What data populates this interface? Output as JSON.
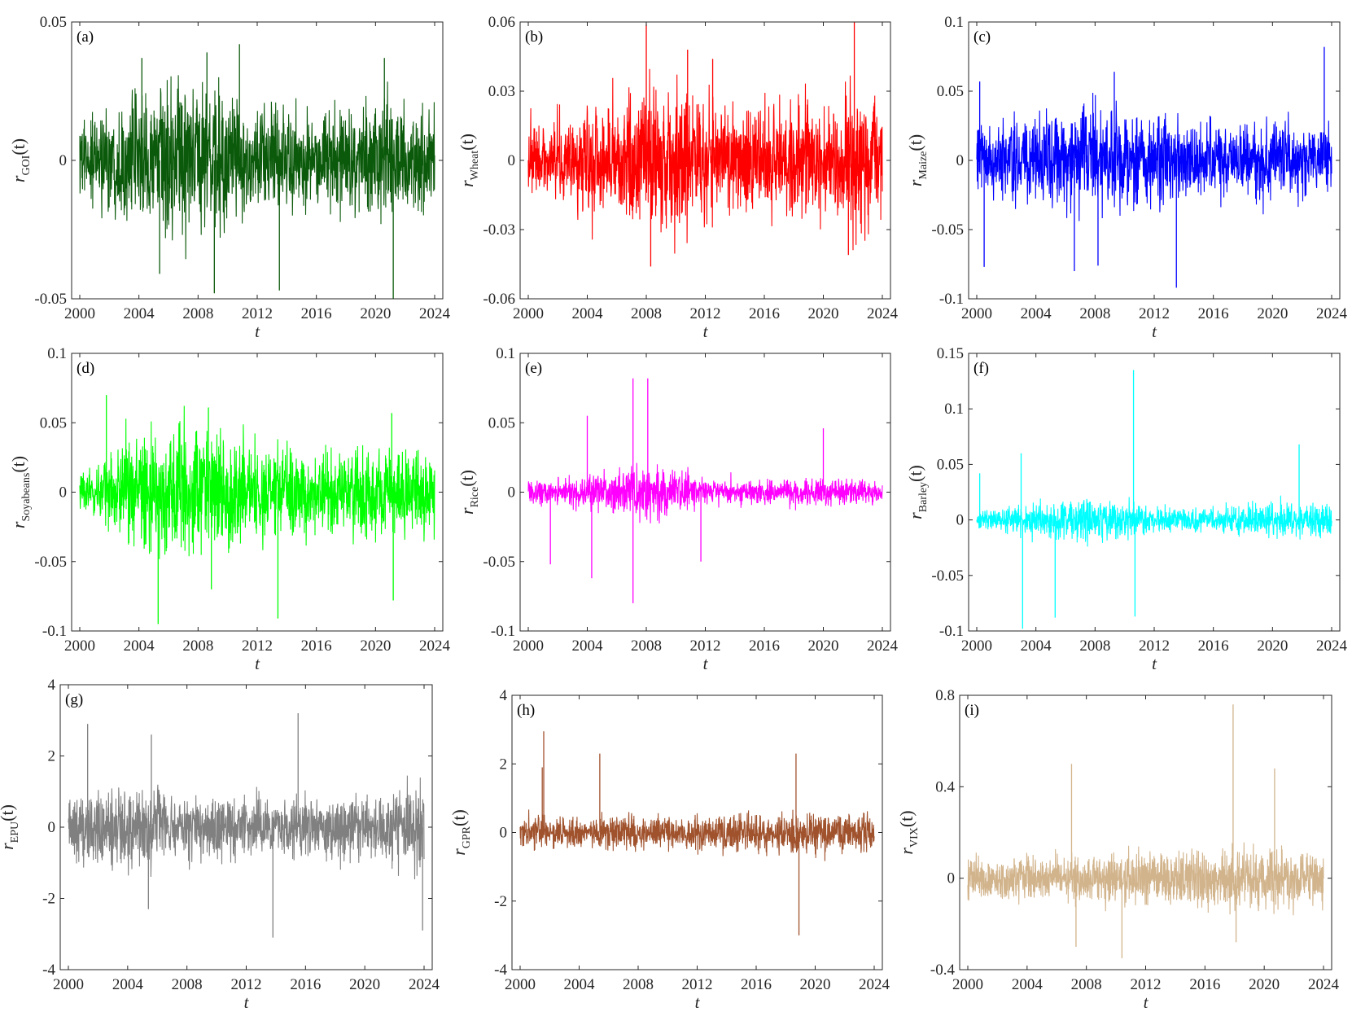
{
  "chart_data": [
    {
      "type": "line",
      "panel_label": "(a)",
      "series_name": "GOI",
      "color": "#0b5a0b",
      "xlabel": "t",
      "ylabel": "r",
      "ylabel_sub": "GOI",
      "ylabel_arg": "(t)",
      "xlim": [
        2000,
        2024
      ],
      "ylim": [
        -0.05,
        0.05
      ],
      "xticks": [
        "2000",
        "2004",
        "2008",
        "2012",
        "2016",
        "2020",
        "2024"
      ],
      "yticks": [
        "-0.05",
        "0",
        "0.05"
      ],
      "ytick_values": [
        -0.05,
        0,
        0.05
      ],
      "vol": [
        [
          2000,
          0.008
        ],
        [
          2004,
          0.011
        ],
        [
          2008,
          0.014
        ],
        [
          2012,
          0.01
        ],
        [
          2016,
          0.008
        ],
        [
          2020,
          0.011
        ],
        [
          2024,
          0.009
        ]
      ],
      "spikes": [
        [
          2004.2,
          0.037
        ],
        [
          2008.6,
          0.039
        ],
        [
          2010.8,
          0.042
        ],
        [
          2020.6,
          0.037
        ],
        [
          2009.1,
          -0.048
        ],
        [
          2013.5,
          -0.047
        ],
        [
          2021.2,
          -0.05
        ],
        [
          2005.4,
          -0.041
        ]
      ]
    },
    {
      "type": "line",
      "panel_label": "(b)",
      "series_name": "Wheat",
      "color": "#ff0000",
      "xlabel": "t",
      "ylabel": "r",
      "ylabel_sub": "Wheat",
      "ylabel_arg": "(t)",
      "xlim": [
        2000,
        2024
      ],
      "ylim": [
        -0.06,
        0.06
      ],
      "xticks": [
        "2000",
        "2004",
        "2008",
        "2012",
        "2016",
        "2020",
        "2024"
      ],
      "yticks": [
        "-0.06",
        "-0.03",
        "0",
        "0.03",
        "0.06"
      ],
      "ytick_values": [
        -0.06,
        -0.03,
        0,
        0.03,
        0.06
      ],
      "vol": [
        [
          2000,
          0.007
        ],
        [
          2004,
          0.011
        ],
        [
          2008,
          0.016
        ],
        [
          2012,
          0.012
        ],
        [
          2016,
          0.01
        ],
        [
          2020,
          0.012
        ],
        [
          2022,
          0.015
        ],
        [
          2024,
          0.011
        ]
      ],
      "spikes": [
        [
          2008.0,
          0.059
        ],
        [
          2010.8,
          0.048
        ],
        [
          2022.1,
          0.06
        ],
        [
          2008.3,
          -0.046
        ],
        [
          2021.7,
          -0.041
        ],
        [
          2012.5,
          0.044
        ]
      ]
    },
    {
      "type": "line",
      "panel_label": "(c)",
      "series_name": "Maize",
      "color": "#0000ff",
      "xlabel": "t",
      "ylabel": "r",
      "ylabel_sub": "Maize",
      "ylabel_arg": "(t)",
      "xlim": [
        2000,
        2024
      ],
      "ylim": [
        -0.1,
        0.1
      ],
      "xticks": [
        "2000",
        "2004",
        "2008",
        "2012",
        "2016",
        "2020",
        "2024"
      ],
      "yticks": [
        "-0.1",
        "-0.05",
        "0",
        "0.05",
        "0.1"
      ],
      "ytick_values": [
        -0.1,
        -0.05,
        0,
        0.05,
        0.1
      ],
      "vol": [
        [
          2000,
          0.013
        ],
        [
          2004,
          0.015
        ],
        [
          2008,
          0.019
        ],
        [
          2012,
          0.015
        ],
        [
          2016,
          0.012
        ],
        [
          2020,
          0.014
        ],
        [
          2024,
          0.013
        ]
      ],
      "spikes": [
        [
          2000.2,
          0.057
        ],
        [
          2009.3,
          0.064
        ],
        [
          2023.5,
          0.082
        ],
        [
          2006.6,
          -0.08
        ],
        [
          2013.5,
          -0.092
        ],
        [
          2000.5,
          -0.077
        ],
        [
          2008.2,
          -0.076
        ]
      ]
    },
    {
      "type": "line",
      "panel_label": "(d)",
      "series_name": "Soyabeans",
      "color": "#00ff00",
      "xlabel": "t",
      "ylabel": "r",
      "ylabel_sub": "Soyabeans",
      "ylabel_arg": "(t)",
      "xlim": [
        2000,
        2024
      ],
      "ylim": [
        -0.1,
        0.1
      ],
      "xticks": [
        "2000",
        "2004",
        "2008",
        "2012",
        "2016",
        "2020",
        "2024"
      ],
      "yticks": [
        "-0.1",
        "-0.05",
        "0",
        "0.05",
        "0.1"
      ],
      "ytick_values": [
        -0.1,
        -0.05,
        0,
        0.05,
        0.1
      ],
      "vol": [
        [
          2000,
          0.006
        ],
        [
          2002,
          0.014
        ],
        [
          2004,
          0.02
        ],
        [
          2008,
          0.022
        ],
        [
          2012,
          0.016
        ],
        [
          2016,
          0.014
        ],
        [
          2020,
          0.016
        ],
        [
          2024,
          0.014
        ]
      ],
      "spikes": [
        [
          2001.8,
          0.07
        ],
        [
          2008.7,
          0.061
        ],
        [
          2021.1,
          0.057
        ],
        [
          2005.3,
          -0.095
        ],
        [
          2013.4,
          -0.091
        ],
        [
          2021.2,
          -0.078
        ],
        [
          2008.9,
          -0.07
        ]
      ]
    },
    {
      "type": "line",
      "panel_label": "(e)",
      "series_name": "Rice",
      "color": "#ff00ff",
      "xlabel": "t",
      "ylabel": "r",
      "ylabel_sub": "Rice",
      "ylabel_arg": "(t)",
      "xlim": [
        2000,
        2024
      ],
      "ylim": [
        -0.1,
        0.1
      ],
      "xticks": [
        "2000",
        "2004",
        "2008",
        "2012",
        "2016",
        "2020",
        "2024"
      ],
      "yticks": [
        "-0.1",
        "-0.05",
        "0",
        "0.05",
        "0.1"
      ],
      "ytick_values": [
        -0.1,
        -0.05,
        0,
        0.05,
        0.1
      ],
      "vol": [
        [
          2000,
          0.004
        ],
        [
          2004,
          0.006
        ],
        [
          2008,
          0.01
        ],
        [
          2012,
          0.005
        ],
        [
          2016,
          0.004
        ],
        [
          2020,
          0.005
        ],
        [
          2024,
          0.004
        ]
      ],
      "spikes": [
        [
          2007.1,
          0.082
        ],
        [
          2008.1,
          0.082
        ],
        [
          2004.0,
          0.055
        ],
        [
          2020.0,
          0.046
        ],
        [
          2007.1,
          -0.08
        ],
        [
          2004.3,
          -0.062
        ],
        [
          2011.7,
          -0.05
        ],
        [
          2001.5,
          -0.052
        ]
      ]
    },
    {
      "type": "line",
      "panel_label": "(f)",
      "series_name": "Barley",
      "color": "#00ffff",
      "xlabel": "t",
      "ylabel": "r",
      "ylabel_sub": "Barley",
      "ylabel_arg": "(t)",
      "xlim": [
        2000,
        2024
      ],
      "ylim": [
        -0.1,
        0.15
      ],
      "xticks": [
        "2000",
        "2004",
        "2008",
        "2012",
        "2016",
        "2020",
        "2024"
      ],
      "yticks": [
        "-0.1",
        "-0.05",
        "0",
        "0.05",
        "0.1",
        "0.15"
      ],
      "ytick_values": [
        -0.1,
        -0.05,
        0,
        0.05,
        0.1,
        0.15
      ],
      "vol": [
        [
          2000,
          0.004
        ],
        [
          2004,
          0.007
        ],
        [
          2008,
          0.01
        ],
        [
          2012,
          0.006
        ],
        [
          2016,
          0.005
        ],
        [
          2020,
          0.007
        ],
        [
          2024,
          0.008
        ]
      ],
      "spikes": [
        [
          2010.6,
          0.135
        ],
        [
          2021.8,
          0.068
        ],
        [
          2003.1,
          -0.098
        ],
        [
          2005.3,
          -0.088
        ],
        [
          2010.7,
          -0.087
        ],
        [
          2000.2,
          0.042
        ],
        [
          2003.0,
          0.06
        ]
      ]
    },
    {
      "type": "line",
      "panel_label": "(g)",
      "series_name": "EPU",
      "color": "#808080",
      "xlabel": "t",
      "ylabel": "r",
      "ylabel_sub": "EPU",
      "ylabel_arg": "(t)",
      "xlim": [
        2000,
        2024
      ],
      "ylim": [
        -4,
        4
      ],
      "xticks": [
        "2000",
        "2004",
        "2008",
        "2012",
        "2016",
        "2020",
        "2024"
      ],
      "yticks": [
        "-4",
        "-2",
        "0",
        "2",
        "4"
      ],
      "ytick_values": [
        -4,
        -2,
        0,
        2,
        4
      ],
      "vol": [
        [
          2000,
          0.5
        ],
        [
          2004,
          0.55
        ],
        [
          2008,
          0.45
        ],
        [
          2012,
          0.38
        ],
        [
          2016,
          0.42
        ],
        [
          2020,
          0.38
        ],
        [
          2024,
          0.6
        ]
      ],
      "spikes": [
        [
          2001.3,
          2.9
        ],
        [
          2005.6,
          2.6
        ],
        [
          2015.5,
          3.2
        ],
        [
          2013.8,
          -3.1
        ],
        [
          2023.9,
          -2.9
        ],
        [
          2005.4,
          -2.3
        ]
      ]
    },
    {
      "type": "line",
      "panel_label": "(h)",
      "series_name": "GPR",
      "color": "#a0522d",
      "xlabel": "t",
      "ylabel": "r",
      "ylabel_sub": "GPR",
      "ylabel_arg": "(t)",
      "xlim": [
        2000,
        2024
      ],
      "ylim": [
        -4,
        4
      ],
      "xticks": [
        "2000",
        "2004",
        "2008",
        "2012",
        "2016",
        "2020",
        "2024"
      ],
      "yticks": [
        "-4",
        "-2",
        "0",
        "2",
        "4"
      ],
      "ytick_values": [
        -4,
        -2,
        0,
        2,
        4
      ],
      "vol": [
        [
          2000,
          0.25
        ],
        [
          2004,
          0.22
        ],
        [
          2008,
          0.22
        ],
        [
          2012,
          0.25
        ],
        [
          2016,
          0.28
        ],
        [
          2020,
          0.32
        ],
        [
          2024,
          0.28
        ]
      ],
      "spikes": [
        [
          2001.6,
          2.95
        ],
        [
          2005.4,
          2.3
        ],
        [
          2018.7,
          2.3
        ],
        [
          2018.9,
          -3.0
        ],
        [
          2001.5,
          1.9
        ]
      ]
    },
    {
      "type": "line",
      "panel_label": "(i)",
      "series_name": "VIX",
      "color": "#d2b48c",
      "xlabel": "t",
      "ylabel": "r",
      "ylabel_sub": "VIX",
      "ylabel_arg": "(t)",
      "xlim": [
        2000,
        2024
      ],
      "ylim": [
        -0.4,
        0.8
      ],
      "xticks": [
        "2000",
        "2004",
        "2008",
        "2012",
        "2016",
        "2020",
        "2024"
      ],
      "yticks": [
        "-0.4",
        "0",
        "0.4",
        "0.8"
      ],
      "ytick_values": [
        -0.4,
        0,
        0.4,
        0.8
      ],
      "vol": [
        [
          2000,
          0.045
        ],
        [
          2004,
          0.045
        ],
        [
          2008,
          0.055
        ],
        [
          2012,
          0.055
        ],
        [
          2016,
          0.06
        ],
        [
          2020,
          0.065
        ],
        [
          2024,
          0.05
        ]
      ],
      "spikes": [
        [
          2017.9,
          0.76
        ],
        [
          2007.0,
          0.5
        ],
        [
          2020.7,
          0.48
        ],
        [
          2010.4,
          -0.35
        ],
        [
          2007.3,
          -0.3
        ],
        [
          2018.1,
          -0.28
        ]
      ]
    }
  ]
}
